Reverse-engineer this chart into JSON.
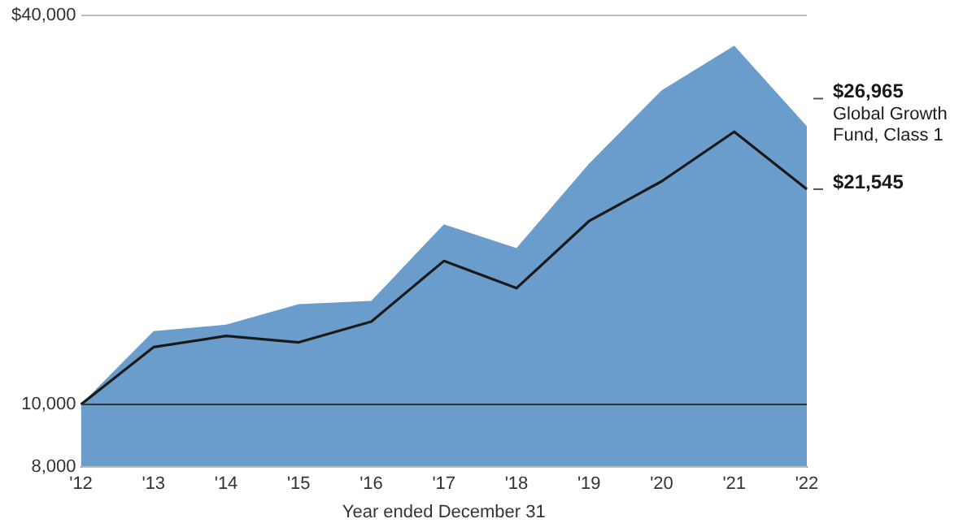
{
  "chart_data": {
    "type": "line",
    "xlabel": "Year ended December 31",
    "categories": [
      "'12",
      "'13",
      "'14",
      "'15",
      "'16",
      "'17",
      "'18",
      "'19",
      "'20",
      "'21",
      "'22"
    ],
    "series": [
      {
        "name": "Global Growth Fund, Class 1",
        "type": "area",
        "color": "#6a9ccc",
        "values": [
          10000,
          12990,
          13290,
          14300,
          14470,
          19010,
          17460,
          23600,
          30640,
          35940,
          26965
        ],
        "value_labels": [
          null,
          null,
          null,
          null,
          null,
          null,
          null,
          null,
          null,
          null,
          "$26,965"
        ]
      },
      {
        "type": "line",
        "color": "#1a1a1a",
        "values": [
          10000,
          12270,
          12770,
          12480,
          13440,
          16680,
          15140,
          19230,
          22160,
          26440,
          21545
        ],
        "value_labels": [
          null,
          null,
          null,
          null,
          null,
          null,
          null,
          null,
          null,
          null,
          "$21,545"
        ]
      }
    ],
    "log": "y",
    "ylim": [
      8000,
      40000
    ],
    "yticks": [
      {
        "value": 8000,
        "label": "8,000"
      },
      {
        "value": 10000,
        "label": "10,000"
      },
      {
        "value": 40000,
        "label": "$40,000"
      }
    ],
    "grid": "y"
  }
}
